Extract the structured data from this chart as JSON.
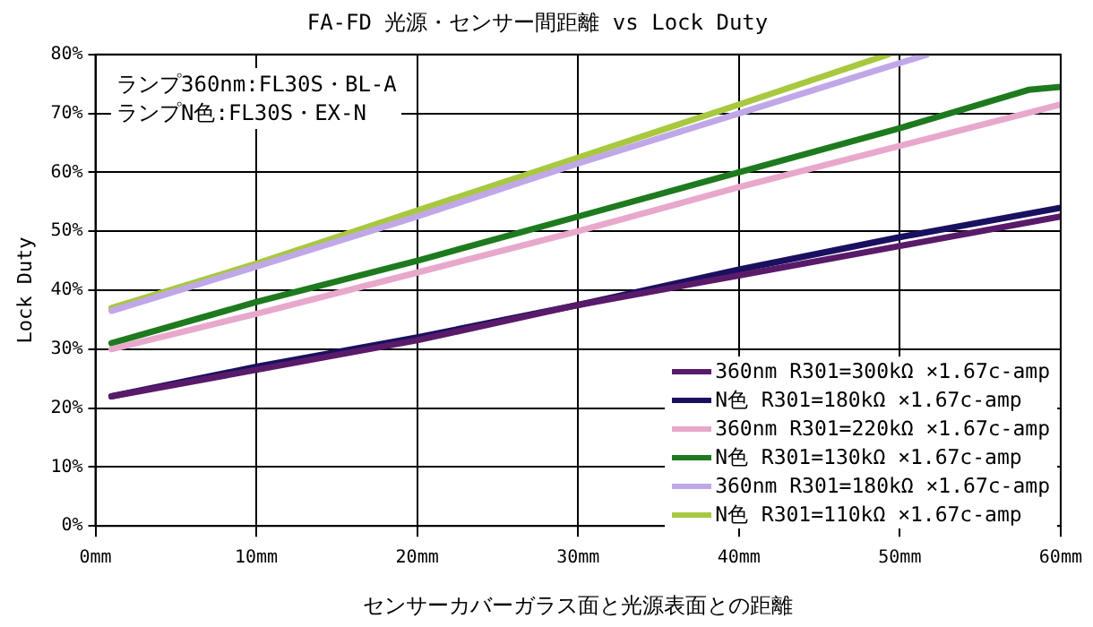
{
  "chart_data": {
    "type": "line",
    "title": "FA-FD 光源・センサー間距離 vs Lock Duty",
    "xlabel": "センサーカバーガラス面と光源表面との距離",
    "ylabel": "Lock Duty",
    "annotations": [
      "ランプ360nm:FL30S・BL-A",
      "ランプN色:FL30S・EX-N"
    ],
    "xlim": [
      0,
      60
    ],
    "xticks": [
      {
        "value": 0,
        "label": "0mm"
      },
      {
        "value": 10,
        "label": "10mm"
      },
      {
        "value": 20,
        "label": "20mm"
      },
      {
        "value": 30,
        "label": "30mm"
      },
      {
        "value": 40,
        "label": "40mm"
      },
      {
        "value": 50,
        "label": "50mm"
      },
      {
        "value": 60,
        "label": "60mm"
      }
    ],
    "ylim": [
      0,
      80
    ],
    "yticks": [
      {
        "value": 0,
        "label": "0%"
      },
      {
        "value": 10,
        "label": "10%"
      },
      {
        "value": 20,
        "label": "20%"
      },
      {
        "value": 30,
        "label": "30%"
      },
      {
        "value": 40,
        "label": "40%"
      },
      {
        "value": 50,
        "label": "50%"
      },
      {
        "value": 60,
        "label": "60%"
      },
      {
        "value": 70,
        "label": "70%"
      },
      {
        "value": 80,
        "label": "80%"
      }
    ],
    "grid": true,
    "legend": "bottom right",
    "marker": "none",
    "line_style": "solid",
    "series": [
      {
        "name": "360nm R301=300kΩ ×1.67c-amp",
        "color": "#5a1a6a",
        "x": [
          1,
          10,
          20,
          30,
          40,
          50,
          60
        ],
        "values": [
          22,
          26.5,
          31.5,
          37.5,
          42.5,
          47.5,
          52.5
        ]
      },
      {
        "name": "N色 R301=180kΩ ×1.67c-amp",
        "color": "#1a1060",
        "x": [
          1,
          10,
          20,
          30,
          40,
          50,
          60
        ],
        "values": [
          22,
          27,
          32,
          37.5,
          43.5,
          49,
          54
        ]
      },
      {
        "name": "360nm R301=220kΩ ×1.67c-amp",
        "color": "#e8a8cc",
        "x": [
          1,
          10,
          20,
          30,
          40,
          50,
          60
        ],
        "values": [
          30,
          36,
          43,
          50,
          57.5,
          64.5,
          71.5
        ]
      },
      {
        "name": "N色 R301=130kΩ ×1.67c-amp",
        "color": "#1e7a1e",
        "x": [
          1,
          10,
          20,
          30,
          40,
          50,
          58,
          60
        ],
        "values": [
          31,
          38,
          45,
          52.5,
          60,
          67.5,
          74,
          74.5
        ]
      },
      {
        "name": "360nm R301=180kΩ ×1.67c-amp",
        "color": "#c0a8e8",
        "x": [
          1,
          10,
          20,
          30,
          40,
          51.7
        ],
        "values": [
          36.5,
          44,
          52.5,
          61.5,
          70,
          80
        ]
      },
      {
        "name": "N色 R301=110kΩ ×1.67c-amp",
        "color": "#a8c840",
        "x": [
          1,
          10,
          20,
          30,
          40,
          49.3
        ],
        "values": [
          37,
          44.5,
          53.5,
          62.5,
          71.5,
          80
        ]
      }
    ]
  }
}
